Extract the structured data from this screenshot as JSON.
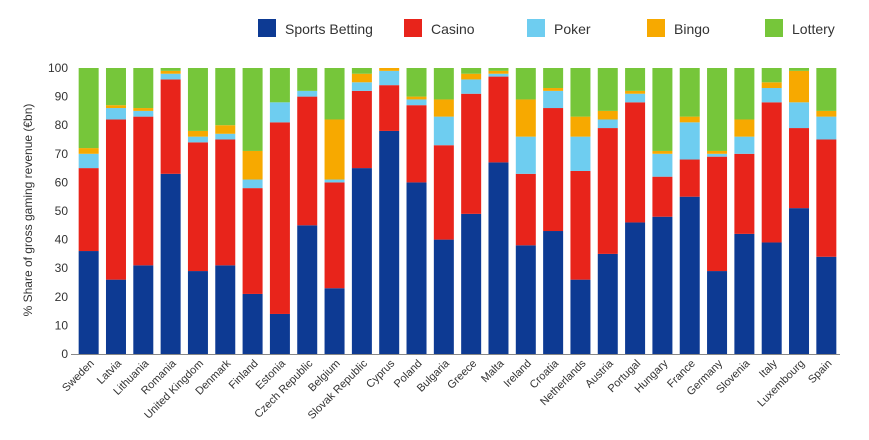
{
  "chart_data": {
    "type": "bar",
    "stacked": true,
    "title": "",
    "xlabel": "",
    "ylabel": "% Share of gross gaming revenue (€bn)",
    "ylim": [
      0,
      100
    ],
    "yticks": [
      0,
      10,
      20,
      30,
      40,
      50,
      60,
      70,
      80,
      90,
      100
    ],
    "grid": false,
    "legend_position": "top-right",
    "categories": [
      "Sweden",
      "Latvia",
      "Lithuania",
      "Romania",
      "United Kingdom",
      "Denmark",
      "Finland",
      "Estonia",
      "Czech Republic",
      "Belgium",
      "Slovak Republic",
      "Cyprus",
      "Poland",
      "Bulgaria",
      "Greece",
      "Malta",
      "Ireland",
      "Croatia",
      "Netherlands",
      "Austria",
      "Portugal",
      "Hungary",
      "France",
      "Germany",
      "Slovenia",
      "Italy",
      "Luxembourg",
      "Spain"
    ],
    "series": [
      {
        "name": "Sports Betting",
        "color": "#0d3a93",
        "values": [
          36,
          26,
          31,
          63,
          29,
          31,
          21,
          14,
          45,
          23,
          65,
          78,
          60,
          40,
          49,
          67,
          38,
          43,
          26,
          35,
          46,
          48,
          55,
          29,
          42,
          39,
          51,
          34
        ]
      },
      {
        "name": "Casino",
        "color": "#e8241b",
        "values": [
          29,
          56,
          52,
          33,
          45,
          44,
          37,
          67,
          45,
          37,
          27,
          16,
          27,
          33,
          42,
          30,
          25,
          43,
          38,
          44,
          42,
          14,
          13,
          40,
          28,
          49,
          28,
          41
        ]
      },
      {
        "name": "Poker",
        "color": "#6ecdf0",
        "values": [
          5,
          4,
          2,
          2,
          2,
          2,
          3,
          7,
          2,
          1,
          3,
          5,
          2,
          10,
          5,
          1,
          13,
          6,
          12,
          3,
          3,
          8,
          13,
          1,
          6,
          5,
          9,
          8
        ]
      },
      {
        "name": "Bingo",
        "color": "#f7a900",
        "values": [
          2,
          1,
          1,
          1,
          2,
          3,
          10,
          0,
          0,
          21,
          3,
          1,
          1,
          6,
          2,
          1,
          13,
          1,
          7,
          3,
          1,
          1,
          2,
          1,
          6,
          2,
          11,
          2
        ]
      },
      {
        "name": "Lottery",
        "color": "#76c63a",
        "values": [
          28,
          13,
          14,
          1,
          22,
          20,
          29,
          12,
          8,
          18,
          2,
          0,
          10,
          11,
          2,
          1,
          11,
          7,
          17,
          15,
          8,
          29,
          17,
          29,
          18,
          5,
          1,
          15
        ]
      }
    ]
  }
}
